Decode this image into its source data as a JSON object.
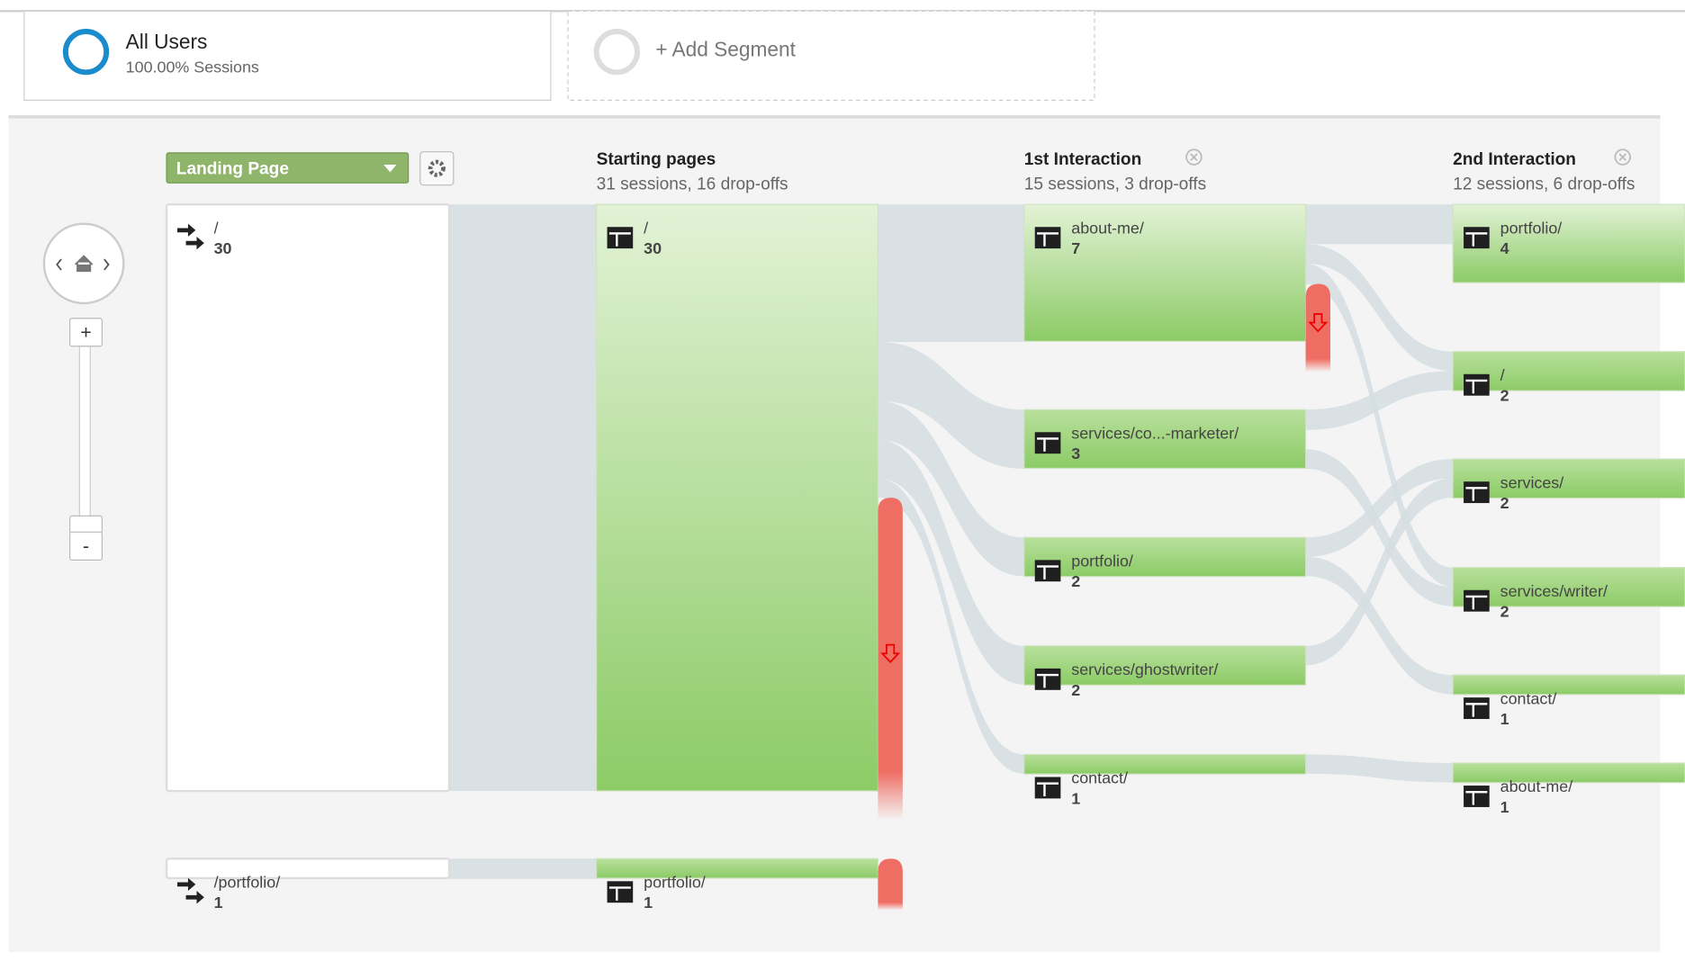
{
  "segments": {
    "all_users": {
      "title": "All Users",
      "subtitle": "100.00% Sessions"
    },
    "add_segment": "+ Add Segment"
  },
  "dimension": "Landing Page",
  "zoom": {
    "in": "+",
    "out": "-"
  },
  "columns": [
    {
      "title": "Starting pages",
      "summary": "31 sessions, 16 drop-offs"
    },
    {
      "title": "1st Interaction",
      "summary": "15 sessions, 3 drop-offs"
    },
    {
      "title": "2nd Interaction",
      "summary": "12 sessions, 6 drop-offs"
    }
  ],
  "landing": [
    {
      "label": "/",
      "value": 30
    },
    {
      "label": "/portfolio/",
      "value": 1
    }
  ],
  "starting": [
    {
      "label": "/",
      "value": 30
    },
    {
      "label": "portfolio/",
      "value": 1
    }
  ],
  "first": [
    {
      "label": "about-me/",
      "value": 7
    },
    {
      "label": "services/co...-marketer/",
      "value": 3
    },
    {
      "label": "portfolio/",
      "value": 2
    },
    {
      "label": "services/ghostwriter/",
      "value": 2
    },
    {
      "label": "contact/",
      "value": 1
    }
  ],
  "second": [
    {
      "label": "portfolio/",
      "value": 4
    },
    {
      "label": "/",
      "value": 2
    },
    {
      "label": "services/",
      "value": 2
    },
    {
      "label": "services/writer/",
      "value": 2
    },
    {
      "label": "contact/",
      "value": 1
    },
    {
      "label": "about-me/",
      "value": 1
    }
  ]
}
